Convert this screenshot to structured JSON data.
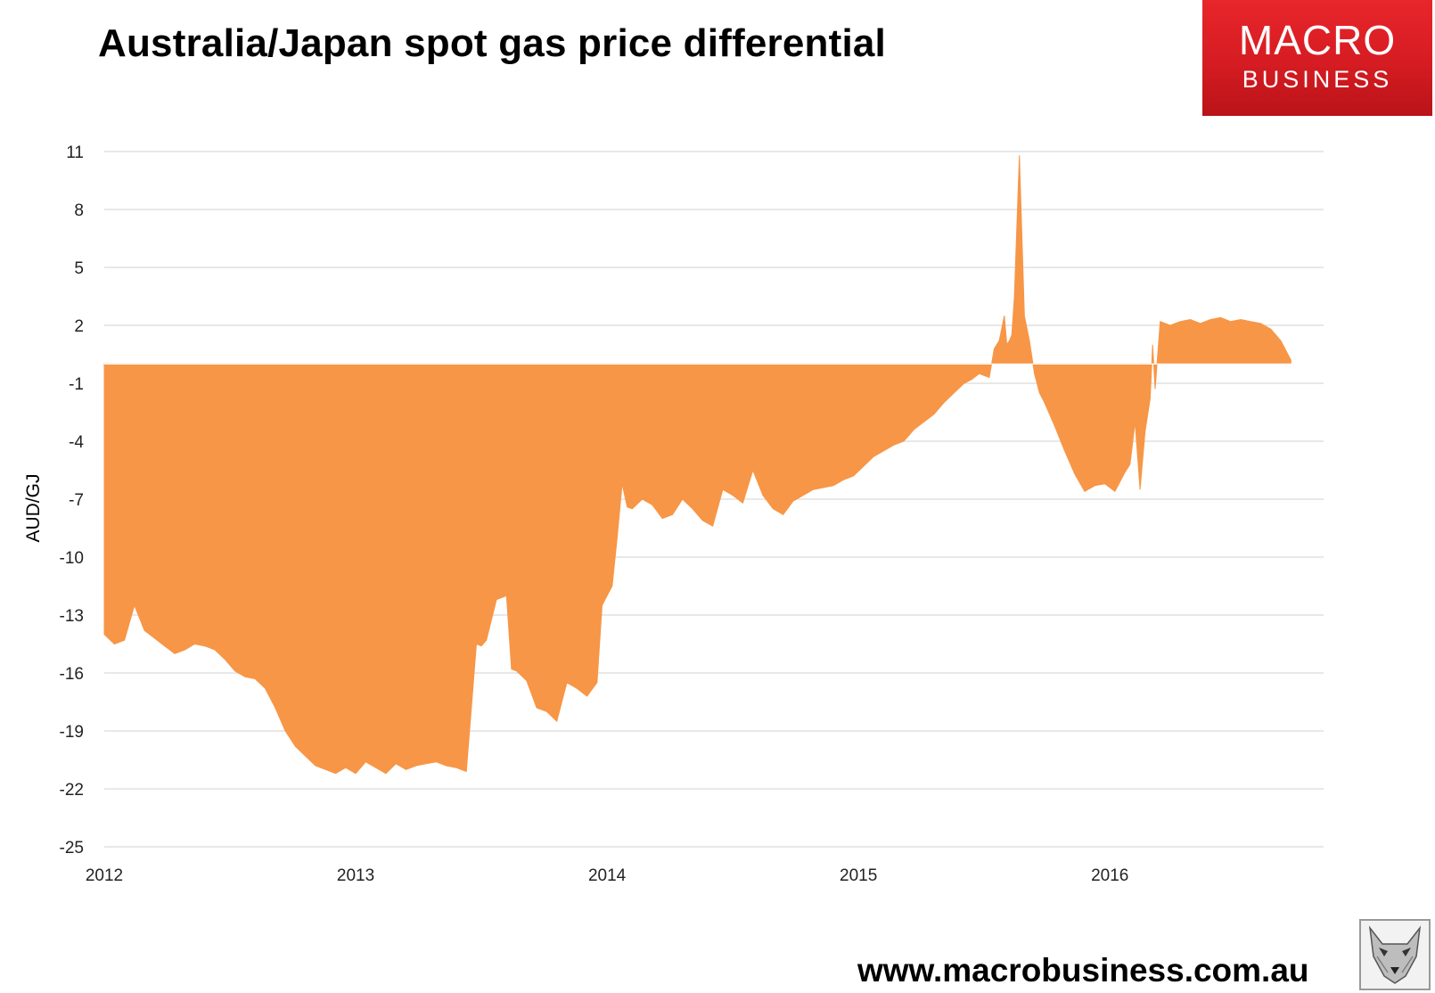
{
  "title": "Australia/Japan spot gas price differential",
  "logo": {
    "line1": "MACRO",
    "line2": "BUSINESS",
    "color": "#d7191f"
  },
  "website": "www.macrobusiness.com.au",
  "badge_icon": "wolf-icon",
  "chart_data": {
    "type": "area",
    "title": "Australia/Japan spot gas price differential",
    "xlabel": "",
    "ylabel": "AUD/GJ",
    "ylim": [
      -25,
      11
    ],
    "xlim": [
      2012,
      2016.85
    ],
    "yticks": [
      11,
      8,
      5,
      2,
      -1,
      -4,
      -7,
      -10,
      -13,
      -16,
      -19,
      -22,
      -25
    ],
    "xticks": [
      "2012",
      "2013",
      "2014",
      "2015",
      "2016"
    ],
    "grid": true,
    "color": "#f79646",
    "series": [
      {
        "x": [
          2012.0,
          2012.04,
          2012.08,
          2012.12,
          2012.16,
          2012.2,
          2012.24,
          2012.28,
          2012.32,
          2012.36,
          2012.4,
          2012.44,
          2012.48,
          2012.52,
          2012.56,
          2012.6,
          2012.64,
          2012.68,
          2012.72,
          2012.76,
          2012.8,
          2012.84,
          2012.88,
          2012.92,
          2012.96,
          2013.0,
          2013.04,
          2013.08,
          2013.12,
          2013.16,
          2013.2,
          2013.24,
          2013.28,
          2013.32,
          2013.36,
          2013.4,
          2013.44,
          2013.48,
          2013.5,
          2013.52,
          2013.56,
          2013.6,
          2013.62,
          2013.64,
          2013.68,
          2013.72,
          2013.76,
          2013.8,
          2013.84,
          2013.88,
          2013.92,
          2013.96,
          2013.98,
          2014.0,
          2014.02,
          2014.04,
          2014.06,
          2014.08,
          2014.1,
          2014.14,
          2014.18,
          2014.22,
          2014.26,
          2014.3,
          2014.34,
          2014.38,
          2014.42,
          2014.46,
          2014.5,
          2014.54,
          2014.58,
          2014.62,
          2014.66,
          2014.7,
          2014.74,
          2014.78,
          2014.82,
          2014.86,
          2014.9,
          2014.94,
          2014.98,
          2015.02,
          2015.06,
          2015.1,
          2015.14,
          2015.18,
          2015.22,
          2015.26,
          2015.3,
          2015.34,
          2015.38,
          2015.42,
          2015.45,
          2015.48,
          2015.5,
          2015.52,
          2015.54,
          2015.56,
          2015.58,
          2015.59,
          2015.6,
          2015.61,
          2015.62,
          2015.64,
          2015.66,
          2015.68,
          2015.7,
          2015.72,
          2015.74,
          2015.78,
          2015.82,
          2015.86,
          2015.9,
          2015.94,
          2015.98,
          2016.02,
          2016.06,
          2016.08,
          2016.1,
          2016.12,
          2016.14,
          2016.16,
          2016.17,
          2016.18,
          2016.2,
          2016.24,
          2016.28,
          2016.32,
          2016.36,
          2016.4,
          2016.44,
          2016.48,
          2016.52,
          2016.56,
          2016.6,
          2016.64,
          2016.68,
          2016.72
        ],
        "y": [
          -14.0,
          -14.5,
          -14.3,
          -12.5,
          -13.8,
          -14.2,
          -14.6,
          -15.0,
          -14.8,
          -14.5,
          -14.6,
          -14.8,
          -15.3,
          -15.9,
          -16.2,
          -16.3,
          -16.8,
          -17.8,
          -19.0,
          -19.8,
          -20.3,
          -20.8,
          -21.0,
          -21.2,
          -20.9,
          -21.2,
          -20.6,
          -20.9,
          -21.2,
          -20.7,
          -21.0,
          -20.8,
          -20.7,
          -20.6,
          -20.8,
          -20.9,
          -21.1,
          -14.5,
          -14.6,
          -14.3,
          -12.2,
          -12.0,
          -15.8,
          -15.9,
          -16.4,
          -17.8,
          -18.0,
          -18.5,
          -16.5,
          -16.8,
          -17.2,
          -16.5,
          -12.5,
          -12.0,
          -11.5,
          -9.0,
          -6.2,
          -7.4,
          -7.5,
          -7.0,
          -7.3,
          -8.0,
          -7.8,
          -7.0,
          -7.5,
          -8.1,
          -8.4,
          -6.5,
          -6.8,
          -7.2,
          -5.5,
          -6.8,
          -7.5,
          -7.8,
          -7.1,
          -6.8,
          -6.5,
          -6.4,
          -6.3,
          -6.0,
          -5.8,
          -5.3,
          -4.8,
          -4.5,
          -4.2,
          -4.0,
          -3.4,
          -3.0,
          -2.6,
          -2.0,
          -1.5,
          -1.0,
          -0.8,
          -0.5,
          -0.6,
          -0.7,
          0.8,
          1.2,
          2.5,
          1.0,
          1.2,
          1.5,
          3.5,
          10.8,
          2.5,
          1.2,
          -0.5,
          -1.5,
          -2.0,
          -3.2,
          -4.5,
          -5.7,
          -6.6,
          -6.3,
          -6.2,
          -6.6,
          -5.6,
          -5.2,
          -3.0,
          -6.5,
          -3.5,
          -1.8,
          1.0,
          -1.3,
          2.2,
          2.0,
          2.2,
          2.3,
          2.1,
          2.3,
          2.4,
          2.2,
          2.3,
          2.2,
          2.1,
          1.8,
          1.2,
          0.2
        ]
      }
    ]
  }
}
